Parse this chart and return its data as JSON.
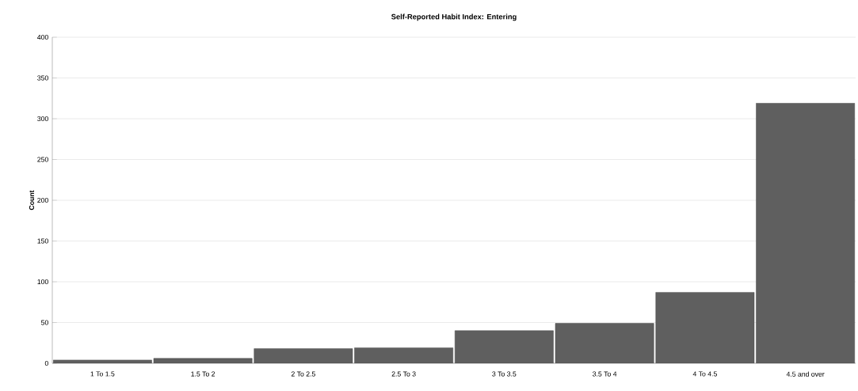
{
  "chart_data": {
    "type": "bar",
    "title": "Self-Reported Habit Index: Entering",
    "ylabel": "Count",
    "categories": [
      "1 To 1.5",
      "1.5 To 2",
      "2 To 2.5",
      "2.5 To 3",
      "3 To 3.5",
      "3.5 To 4",
      "4 To 4.5",
      "4.5 and over"
    ],
    "values": [
      4,
      6,
      18,
      19,
      40,
      49,
      87,
      319
    ],
    "color": "#5f5f5f",
    "ylim": [
      0,
      400
    ],
    "yticks": [
      0,
      50,
      100,
      150,
      200,
      250,
      300,
      350,
      400
    ],
    "grid": "y"
  }
}
